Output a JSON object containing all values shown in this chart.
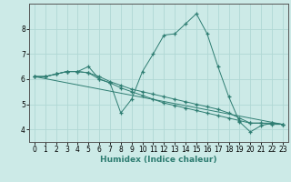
{
  "background_color": "#cceae7",
  "grid_color": "#b0d8d4",
  "line_color": "#2e7d72",
  "marker": "+",
  "xlabel": "Humidex (Indice chaleur)",
  "ylim": [
    3.5,
    9.0
  ],
  "xlim": [
    -0.5,
    23.5
  ],
  "yticks": [
    4,
    5,
    6,
    7,
    8
  ],
  "xticks": [
    0,
    1,
    2,
    3,
    4,
    5,
    6,
    7,
    8,
    9,
    10,
    11,
    12,
    13,
    14,
    15,
    16,
    17,
    18,
    19,
    20,
    21,
    22,
    23
  ],
  "series": [
    {
      "x": [
        0,
        1,
        2,
        3,
        4,
        5,
        6,
        7,
        8,
        9,
        10,
        11,
        12,
        13,
        14,
        15,
        16,
        17,
        18,
        19,
        20,
        21,
        22,
        23
      ],
      "y": [
        6.1,
        6.1,
        6.2,
        6.3,
        6.3,
        6.5,
        6.0,
        5.85,
        4.65,
        5.2,
        6.3,
        7.0,
        7.75,
        7.8,
        8.2,
        8.6,
        7.8,
        6.5,
        5.3,
        4.3,
        3.9,
        4.15,
        4.25,
        4.2
      ],
      "with_markers": true
    },
    {
      "x": [
        0,
        1,
        2,
        3,
        4,
        5,
        6,
        7,
        8,
        9,
        10,
        11,
        12,
        13,
        14,
        15,
        16,
        17,
        18,
        19,
        20,
        21,
        22,
        23
      ],
      "y": [
        6.1,
        6.1,
        6.2,
        6.3,
        6.3,
        6.25,
        6.1,
        5.9,
        5.75,
        5.6,
        5.5,
        5.4,
        5.3,
        5.2,
        5.1,
        5.0,
        4.9,
        4.8,
        4.65,
        4.45,
        4.25,
        4.25,
        4.25,
        4.2
      ],
      "with_markers": true
    },
    {
      "x": [
        0,
        1,
        2,
        3,
        4,
        5,
        6,
        7,
        8,
        9,
        10,
        11,
        12,
        13,
        14,
        15,
        16,
        17,
        18,
        19,
        20,
        21,
        22,
        23
      ],
      "y": [
        6.1,
        6.1,
        6.2,
        6.3,
        6.3,
        6.25,
        6.0,
        5.85,
        5.65,
        5.5,
        5.35,
        5.2,
        5.05,
        4.95,
        4.85,
        4.75,
        4.65,
        4.55,
        4.45,
        4.35,
        4.25,
        4.25,
        4.2,
        4.2
      ],
      "with_markers": true
    },
    {
      "x": [
        0,
        23
      ],
      "y": [
        6.1,
        4.2
      ],
      "with_markers": false
    }
  ],
  "label_fontsize": 6.5,
  "tick_fontsize": 5.5
}
